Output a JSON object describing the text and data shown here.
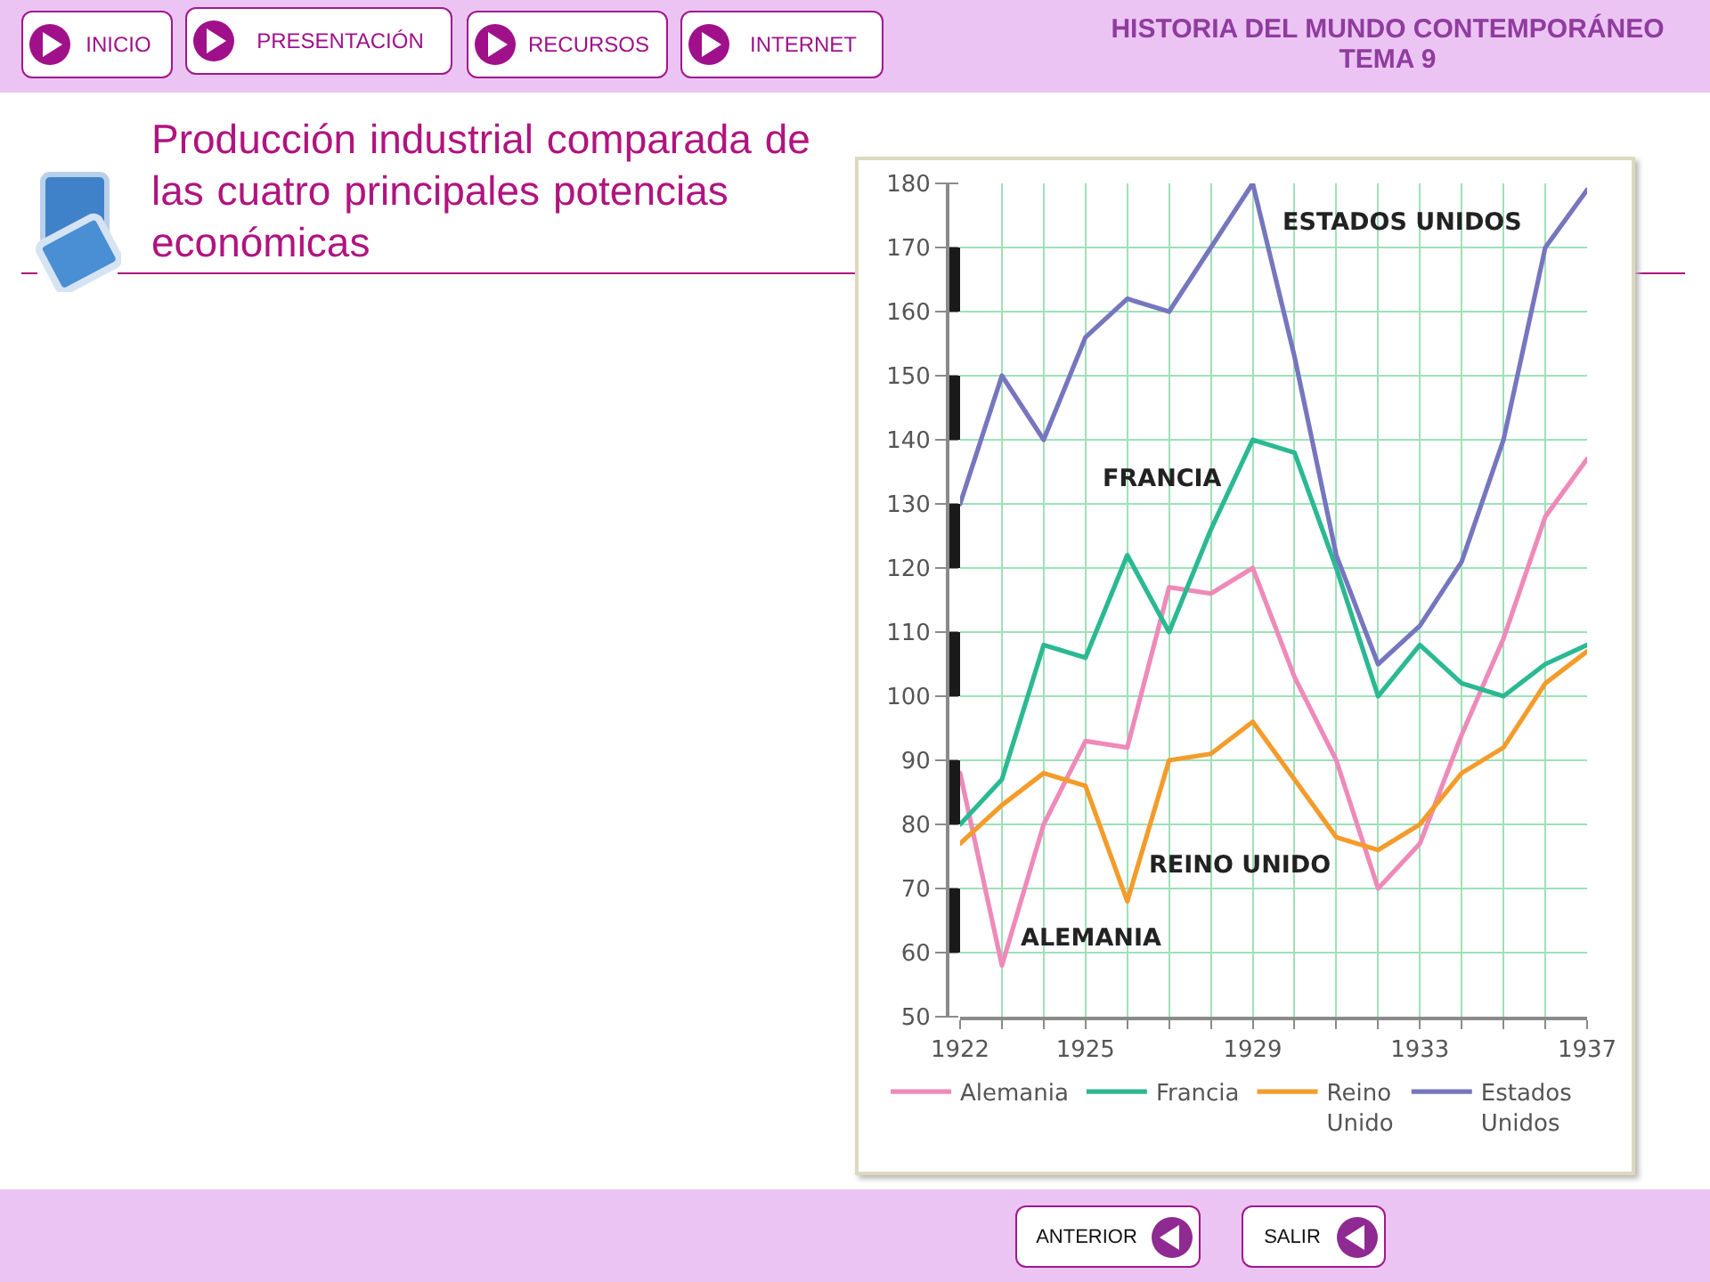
{
  "chart_data": {
    "type": "line",
    "title": "Producción industrial comparada de las cuatro principales potencias económicas",
    "subtitle": "HISTORIA DEL MUNDO CONTEMPORÁNEO TEMA 9",
    "x": [
      1922,
      1923,
      1924,
      1925,
      1926,
      1927,
      1928,
      1929,
      1930,
      1931,
      1932,
      1933,
      1934,
      1935,
      1936,
      1937
    ],
    "series": [
      {
        "name": "Alemania",
        "color": "#ee8ab9",
        "values": [
          88,
          58,
          80,
          93,
          92,
          117,
          116,
          120,
          103,
          90,
          70,
          77,
          94,
          109,
          128,
          137
        ]
      },
      {
        "name": "Francia",
        "color": "#2bb992",
        "values": [
          80,
          87,
          108,
          106,
          122,
          110,
          126,
          140,
          138,
          120,
          100,
          108,
          102,
          100,
          105,
          108
        ]
      },
      {
        "name": "Reino Unido",
        "color": "#f39c2b",
        "values": [
          77,
          83,
          88,
          86,
          68,
          90,
          91,
          96,
          87,
          78,
          76,
          80,
          88,
          92,
          102,
          107
        ]
      },
      {
        "name": "Estados Unidos",
        "color": "#7676bf",
        "values": [
          130,
          150,
          140,
          156,
          162,
          160,
          170,
          180,
          153,
          122,
          105,
          111,
          121,
          140,
          170,
          179
        ]
      }
    ],
    "xlim": [
      1922,
      1937
    ],
    "xticks": [
      1922,
      {
        "value": 1923,
        "label": null
      },
      {
        "value": 1924,
        "label": null
      },
      1925,
      {
        "value": 1926,
        "label": null
      },
      {
        "value": 1927,
        "label": null
      },
      {
        "value": 1928,
        "label": null
      },
      1929,
      {
        "value": 1930,
        "label": null
      },
      {
        "value": 1931,
        "label": null
      },
      {
        "value": 1932,
        "label": null
      },
      1933,
      {
        "value": 1934,
        "label": null
      },
      {
        "value": 1935,
        "label": null
      },
      {
        "value": 1936,
        "label": null
      },
      1937
    ],
    "ylim": [
      50,
      180
    ],
    "yticks": [
      50,
      60,
      70,
      80,
      90,
      100,
      110,
      120,
      130,
      140,
      150,
      160,
      170,
      180
    ],
    "grid": true,
    "legend": "bottom",
    "marker": "none",
    "line_style": "solid",
    "annotations": [
      "ESTADOS UNIDOS",
      "FRANCIA",
      "REINO UNIDO",
      "ALEMANIA",
      "INICIO",
      "PRESENTACIÓN",
      "RECURSOS",
      "INTERNET",
      "ANTERIOR",
      "SALIR"
    ]
  }
}
